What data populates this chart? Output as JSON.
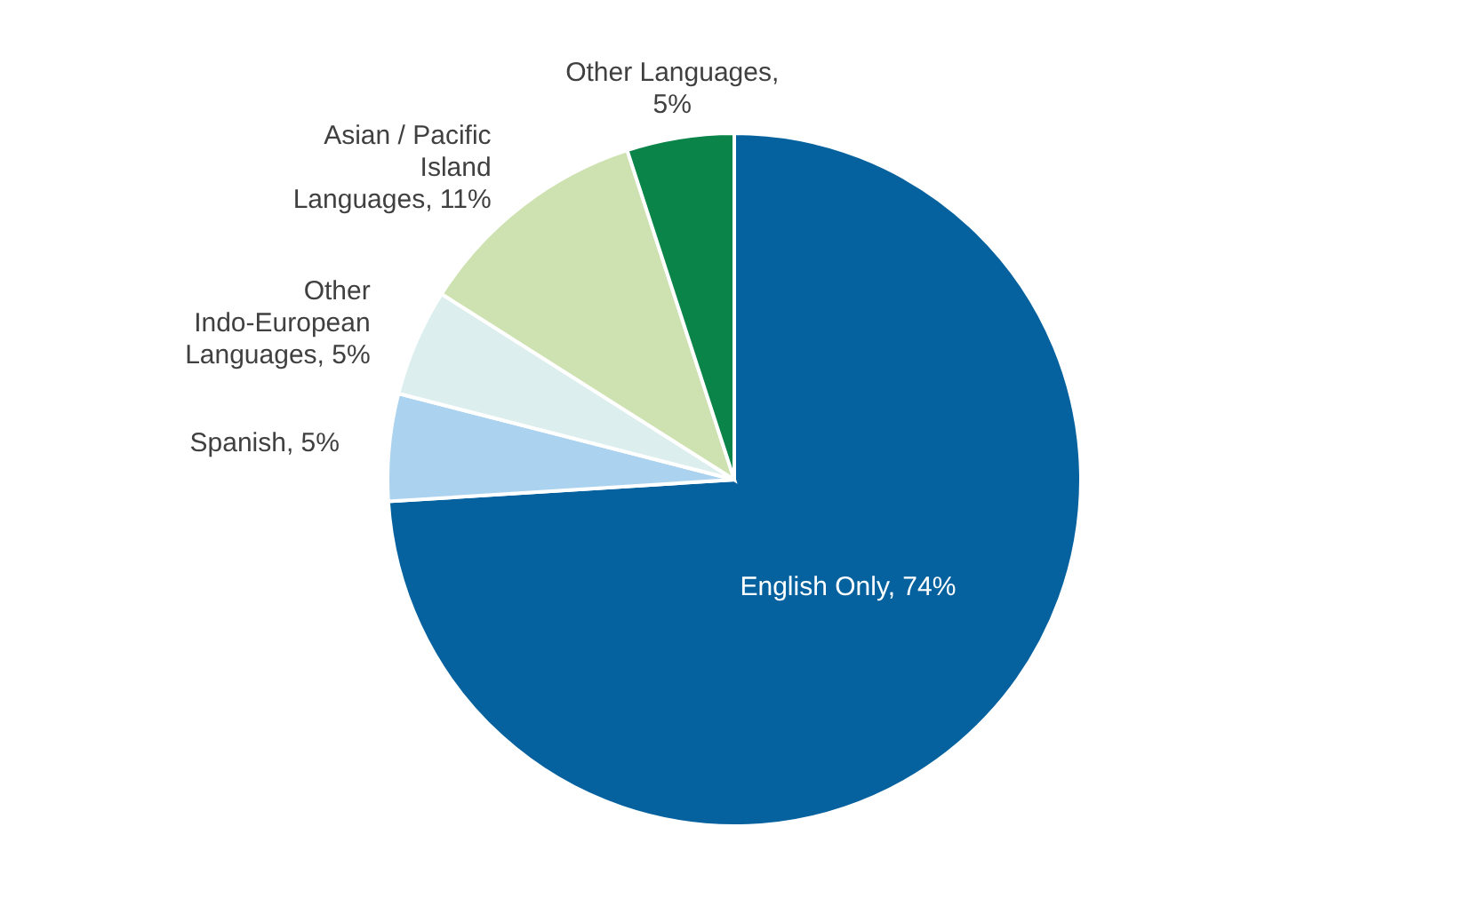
{
  "chart_data": {
    "type": "pie",
    "categories": [
      "English Only, 74%",
      "Spanish, 5%",
      "Other Indo-European Languages, 5%",
      "Asian / Pacific Island Languages, 11%",
      "Other Languages, 5%"
    ],
    "values": [
      74,
      5,
      5,
      11,
      5
    ],
    "colors": [
      "#05629f",
      "#abd3ef",
      "#dcefee",
      "#cde2b0",
      "#0a8449"
    ],
    "legend": false
  }
}
